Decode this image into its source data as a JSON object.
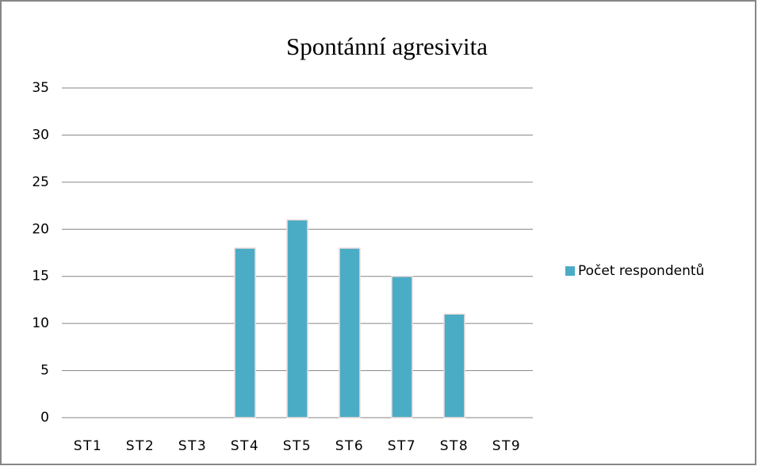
{
  "chart_data": {
    "type": "bar",
    "title": "Spontánní agresivita",
    "categories": [
      "ST1",
      "ST2",
      "ST3",
      "ST4",
      "ST5",
      "ST6",
      "ST7",
      "ST8",
      "ST9"
    ],
    "series": [
      {
        "name": "Počet respondentů",
        "color": "#4bacc6",
        "values": [
          0,
          0,
          0,
          18,
          21,
          18,
          15,
          11,
          0
        ]
      }
    ],
    "ylim": [
      0,
      35
    ],
    "yticks": [
      0,
      5,
      10,
      15,
      20,
      25,
      30,
      35
    ],
    "grid": true,
    "legend": "right"
  }
}
